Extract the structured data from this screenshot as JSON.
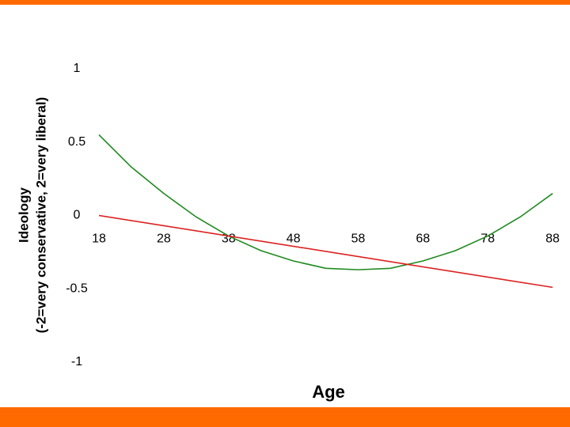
{
  "chart_data": {
    "type": "line",
    "x_label": "Age",
    "y_label": [
      "Ideology",
      "(-2=very conservative, 2=very liberal)"
    ],
    "xlim": [
      18,
      88
    ],
    "xticks": [
      18,
      28,
      38,
      48,
      58,
      68,
      78,
      88
    ],
    "ylim": [
      -1,
      1
    ],
    "yticks": [
      1,
      0.5,
      0,
      -0.5,
      -1
    ],
    "grid": false,
    "series": [
      {
        "color": "#1f8a1f",
        "x": [
          18,
          23,
          28,
          33,
          38,
          43,
          48,
          53,
          58,
          63,
          68,
          73,
          78,
          83,
          88
        ],
        "values": [
          0.55,
          0.33,
          0.15,
          -0.01,
          -0.14,
          -0.24,
          -0.31,
          -0.36,
          -0.37,
          -0.36,
          -0.31,
          -0.24,
          -0.14,
          -0.01,
          0.15
        ]
      },
      {
        "color": "#dd2020",
        "x": [
          18,
          88
        ],
        "values": [
          0,
          -0.49
        ]
      }
    ]
  }
}
